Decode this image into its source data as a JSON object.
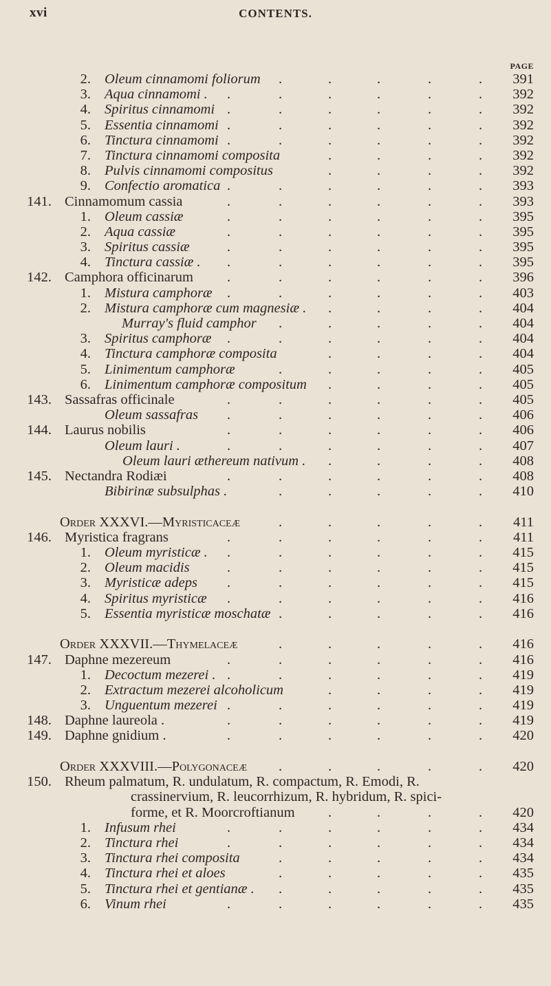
{
  "header": {
    "folio": "xvi",
    "running_title": "CONTENTS.",
    "page_column_label": "PAGE"
  },
  "entries": [
    {
      "kind": "preparation",
      "num": "2.",
      "text": "Oleum cinnamomi foliorum",
      "italic": true,
      "page": "391"
    },
    {
      "kind": "preparation",
      "num": "3.",
      "text": "Aqua cinnamomi .",
      "italic": true,
      "page": "392"
    },
    {
      "kind": "preparation",
      "num": "4.",
      "text": "Spiritus cinnamomi",
      "italic": true,
      "page": "392"
    },
    {
      "kind": "preparation",
      "num": "5.",
      "text": "Essentia cinnamomi",
      "italic": true,
      "page": "392"
    },
    {
      "kind": "preparation",
      "num": "6.",
      "text": "Tinctura cinnamomi",
      "italic": true,
      "page": "392"
    },
    {
      "kind": "preparation",
      "num": "7.",
      "text": "Tinctura cinnamomi composita",
      "italic": true,
      "page": "392"
    },
    {
      "kind": "preparation",
      "num": "8.",
      "text": "Pulvis cinnamomi compositus",
      "italic": true,
      "page": "392"
    },
    {
      "kind": "preparation",
      "num": "9.",
      "text": "Confectio aromatica",
      "italic": true,
      "page": "393"
    },
    {
      "kind": "species",
      "num": "141.",
      "text": "Cinnamomum cassia",
      "italic": false,
      "page": "393"
    },
    {
      "kind": "preparation",
      "num": "1.",
      "text": "Oleum cassiæ",
      "italic": true,
      "page": "395"
    },
    {
      "kind": "preparation",
      "num": "2.",
      "text": "Aqua cassiæ",
      "italic": true,
      "page": "395"
    },
    {
      "kind": "preparation",
      "num": "3.",
      "text": "Spiritus cassiæ",
      "italic": true,
      "page": "395"
    },
    {
      "kind": "preparation",
      "num": "4.",
      "text": "Tinctura cassiæ .",
      "italic": true,
      "page": "395"
    },
    {
      "kind": "species",
      "num": "142.",
      "text": "Camphora officinarum",
      "italic": false,
      "page": "396"
    },
    {
      "kind": "preparation",
      "num": "1.",
      "text": "Mistura camphoræ",
      "italic": true,
      "page": "403"
    },
    {
      "kind": "preparation",
      "num": "2.",
      "text": "Mistura camphoræ cum magnesiæ .",
      "italic": true,
      "page": "404"
    },
    {
      "kind": "continuation",
      "num": "",
      "text": "Murray's fluid camphor",
      "italic": true,
      "page": "404"
    },
    {
      "kind": "preparation",
      "num": "3.",
      "text": "Spiritus camphoræ",
      "italic": true,
      "page": "404"
    },
    {
      "kind": "preparation",
      "num": "4.",
      "text": "Tinctura camphoræ composita",
      "italic": true,
      "page": "404"
    },
    {
      "kind": "preparation",
      "num": "5.",
      "text": "Linimentum camphoræ",
      "italic": true,
      "page": "405"
    },
    {
      "kind": "preparation",
      "num": "6.",
      "text": "Linimentum camphoræ compositum",
      "italic": true,
      "page": "405"
    },
    {
      "kind": "species",
      "num": "143.",
      "text": "Sassafras officinale",
      "italic": false,
      "page": "405"
    },
    {
      "kind": "prep-nonum",
      "num": "",
      "text": "Oleum sassafras",
      "italic": true,
      "page": "406"
    },
    {
      "kind": "species",
      "num": "144.",
      "text": "Laurus nobilis",
      "italic": false,
      "page": "406"
    },
    {
      "kind": "prep-nonum",
      "num": "",
      "text": "Oleum lauri .",
      "italic": true,
      "page": "407"
    },
    {
      "kind": "prep-deep",
      "num": "",
      "text": "Oleum lauri æthereum nativum .",
      "italic": true,
      "page": "408"
    },
    {
      "kind": "species",
      "num": "145.",
      "text": "Nectandra Rodiæi",
      "italic": false,
      "page": "408"
    },
    {
      "kind": "prep-nonum",
      "num": "",
      "text": "Bibirinæ subsulphas .",
      "italic": true,
      "page": "410"
    },
    {
      "kind": "order",
      "num": "",
      "text": "Order XXXVI.—Myristicaceæ",
      "italic": false,
      "page": "411"
    },
    {
      "kind": "species",
      "num": "146.",
      "text": "Myristica fragrans",
      "italic": false,
      "page": "411"
    },
    {
      "kind": "preparation",
      "num": "1.",
      "text": "Oleum myristicæ .",
      "italic": true,
      "page": "415"
    },
    {
      "kind": "preparation",
      "num": "2.",
      "text": "Oleum macidis",
      "italic": true,
      "page": "415"
    },
    {
      "kind": "preparation",
      "num": "3.",
      "text": "Myristicæ adeps",
      "italic": true,
      "page": "415"
    },
    {
      "kind": "preparation",
      "num": "4.",
      "text": "Spiritus myristicæ",
      "italic": true,
      "page": "416"
    },
    {
      "kind": "preparation",
      "num": "5.",
      "text": "Essentia myristicæ moschatæ",
      "italic": true,
      "page": "416"
    },
    {
      "kind": "order",
      "num": "",
      "text": "Order XXXVII.—Thymelaceæ",
      "italic": false,
      "page": "416"
    },
    {
      "kind": "species",
      "num": "147.",
      "text": "Daphne mezereum",
      "italic": false,
      "page": "416"
    },
    {
      "kind": "preparation",
      "num": "1.",
      "text": "Decoctum mezerei .",
      "italic": true,
      "page": "419"
    },
    {
      "kind": "preparation",
      "num": "2.",
      "text": "Extractum mezerei alcoholicum",
      "italic": true,
      "page": "419"
    },
    {
      "kind": "preparation",
      "num": "3.",
      "text": "Unguentum mezerei",
      "italic": true,
      "page": "419"
    },
    {
      "kind": "species",
      "num": "148.",
      "text": "Daphne laureola .",
      "italic": false,
      "page": "419"
    },
    {
      "kind": "species",
      "num": "149.",
      "text": "Daphne gnidium .",
      "italic": false,
      "page": "420"
    },
    {
      "kind": "order",
      "num": "",
      "text": "Order XXXVIII.—Polygonaceæ",
      "italic": false,
      "page": "420"
    },
    {
      "kind": "species",
      "num": "150.",
      "text": "Rheum palmatum, R. undulatum, R. compactum, R. Emodi, R.",
      "italic": false,
      "page": ""
    },
    {
      "kind": "wrap",
      "num": "",
      "text": "crassinervium, R. leucorrhizum, R. hybridum, R. spici-",
      "italic": false,
      "page": ""
    },
    {
      "kind": "wrap",
      "num": "",
      "text": "forme, et R. Moorcroftianum",
      "italic": false,
      "page": "420"
    },
    {
      "kind": "preparation",
      "num": "1.",
      "text": "Infusum rhei",
      "italic": true,
      "page": "434"
    },
    {
      "kind": "preparation",
      "num": "2.",
      "text": "Tinctura rhei",
      "italic": true,
      "page": "434"
    },
    {
      "kind": "preparation",
      "num": "3.",
      "text": "Tinctura rhei composita",
      "italic": true,
      "page": "434"
    },
    {
      "kind": "preparation",
      "num": "4.",
      "text": "Tinctura rhei et aloes",
      "italic": true,
      "page": "435"
    },
    {
      "kind": "preparation",
      "num": "5.",
      "text": "Tinctura rhei et gentianæ .",
      "italic": true,
      "page": "435"
    },
    {
      "kind": "preparation",
      "num": "6.",
      "text": "Vinum rhei",
      "italic": true,
      "page": "435"
    }
  ]
}
